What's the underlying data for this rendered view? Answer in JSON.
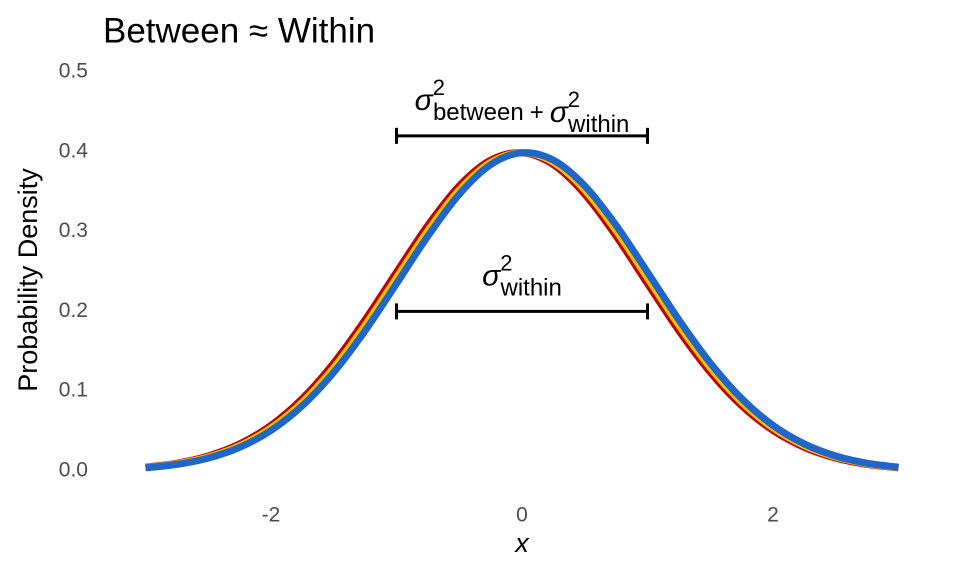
{
  "chart_data": {
    "type": "line",
    "title": "Between ≈ Within",
    "xlabel": "x",
    "ylabel": "Probability Density",
    "x": [
      -3,
      -2.75,
      -2.5,
      -2.25,
      -2,
      -1.75,
      -1.5,
      -1.25,
      -1,
      -0.75,
      -0.5,
      -0.25,
      0,
      0.25,
      0.5,
      0.75,
      1,
      1.25,
      1.5,
      1.75,
      2,
      2.25,
      2.5,
      2.75,
      3
    ],
    "series": [
      {
        "color": "#c00000",
        "values": [
          0.0048,
          0.0098,
          0.0188,
          0.0339,
          0.0572,
          0.0908,
          0.1354,
          0.1895,
          0.2492,
          0.3079,
          0.3574,
          0.3896,
          0.3988,
          0.3838,
          0.3468,
          0.2944,
          0.2347,
          0.1758,
          0.1237,
          0.0818,
          0.0508,
          0.0296,
          0.0162,
          0.0083,
          0.004
        ]
      },
      {
        "color": "#f2c200",
        "values": [
          0.0044,
          0.0091,
          0.0175,
          0.0317,
          0.054,
          0.0863,
          0.1295,
          0.1827,
          0.242,
          0.3011,
          0.3521,
          0.3867,
          0.3989,
          0.3867,
          0.3521,
          0.3011,
          0.242,
          0.1827,
          0.1295,
          0.0863,
          0.054,
          0.0317,
          0.0175,
          0.0091,
          0.0044
        ]
      },
      {
        "color": "#1f66c8",
        "values": [
          0.004,
          0.0083,
          0.0162,
          0.0296,
          0.0508,
          0.0818,
          0.1237,
          0.1758,
          0.2347,
          0.2944,
          0.3468,
          0.3838,
          0.3988,
          0.3896,
          0.3574,
          0.3079,
          0.2492,
          0.1895,
          0.1354,
          0.0908,
          0.0572,
          0.0339,
          0.0188,
          0.0098,
          0.0048
        ]
      }
    ],
    "xlim": [
      -3,
      3
    ],
    "xticks": [
      -2,
      0,
      2
    ],
    "ylim": [
      0,
      0.5
    ],
    "yticks": [
      {
        "value": 0,
        "label": "0.0"
      },
      0.1,
      0.2,
      0.3,
      0.4,
      0.5
    ],
    "grid": false,
    "annotations": [
      {
        "terms": [
          {
            "symbol": "σ",
            "sup": "2",
            "sub": "between"
          },
          {
            "symbol": "σ",
            "sup": "2",
            "sub": "within"
          }
        ],
        "operator": "+",
        "x": [
          -1,
          1
        ],
        "y": 0.42
      },
      {
        "terms": [
          {
            "symbol": "σ",
            "sup": "2",
            "sub": "within"
          }
        ],
        "x": [
          -1,
          1
        ],
        "y": 0.2
      }
    ]
  }
}
